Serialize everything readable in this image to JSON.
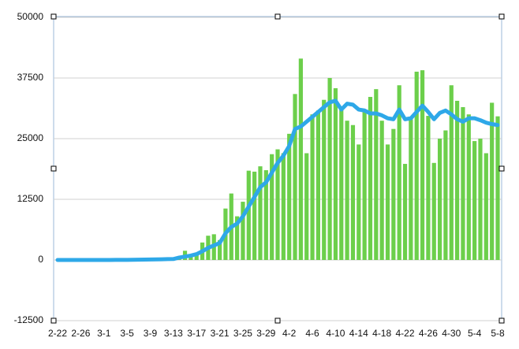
{
  "chart_data": {
    "type": "bar-line",
    "categories": [
      "2-22",
      null,
      null,
      null,
      "2-26",
      null,
      null,
      null,
      "3-1",
      null,
      null,
      null,
      "3-5",
      null,
      null,
      null,
      "3-9",
      null,
      null,
      null,
      "3-13",
      null,
      null,
      null,
      "3-17",
      null,
      null,
      null,
      "3-21",
      null,
      null,
      null,
      "3-25",
      null,
      null,
      null,
      "3-29",
      null,
      null,
      null,
      "4-2",
      null,
      null,
      null,
      "4-6",
      null,
      null,
      null,
      "4-10",
      null,
      null,
      null,
      "4-14",
      null,
      null,
      null,
      "4-18",
      null,
      null,
      null,
      "4-22",
      null,
      null,
      null,
      "4-26",
      null,
      null,
      null,
      "4-30",
      null,
      null,
      null,
      "5-4",
      null,
      null,
      null,
      "5-8"
    ],
    "series": [
      {
        "type": "bar",
        "color": "#6ccf4b",
        "values": [
          0,
          0,
          0,
          0,
          0,
          0,
          0,
          5,
          8,
          10,
          20,
          25,
          40,
          60,
          75,
          100,
          120,
          160,
          300,
          400,
          500,
          600,
          1900,
          800,
          1000,
          3600,
          5000,
          5300,
          4100,
          10600,
          13700,
          9000,
          12000,
          18400,
          18200,
          19300,
          18500,
          21800,
          22800,
          22000,
          26000,
          34200,
          41500,
          22000,
          30000,
          30800,
          33000,
          37500,
          35400,
          31000,
          28700,
          27800,
          23800,
          30500,
          33600,
          35200,
          28700,
          23800,
          27000,
          36000,
          19800,
          29000,
          38800,
          39100,
          29700,
          20000,
          25000,
          26700,
          36000,
          32800,
          31500,
          30000,
          24500,
          25000,
          22000,
          32400,
          29600
        ]
      },
      {
        "type": "line",
        "color": "#2ea8e8",
        "values": [
          0,
          0,
          0,
          0,
          0,
          0,
          0,
          0,
          5,
          10,
          15,
          20,
          30,
          40,
          60,
          80,
          100,
          120,
          150,
          180,
          200,
          500,
          700,
          900,
          1200,
          1800,
          2500,
          3000,
          3500,
          5500,
          6800,
          7500,
          9000,
          11000,
          13000,
          15000,
          16000,
          18000,
          20000,
          21500,
          23500,
          27000,
          27500,
          28500,
          29500,
          30500,
          31500,
          32500,
          32800,
          31000,
          32200,
          32000,
          31000,
          30800,
          30200,
          30200,
          29800,
          29200,
          29000,
          31000,
          29000,
          29200,
          30500,
          31800,
          30500,
          29000,
          30300,
          30800,
          30000,
          29000,
          28500,
          29200,
          29200,
          28800,
          28300,
          28000,
          27800
        ]
      }
    ],
    "ylim": [
      -12500,
      50000
    ],
    "yticks": [
      -12500,
      0,
      12500,
      25000,
      37500,
      50000
    ],
    "grid": true
  }
}
